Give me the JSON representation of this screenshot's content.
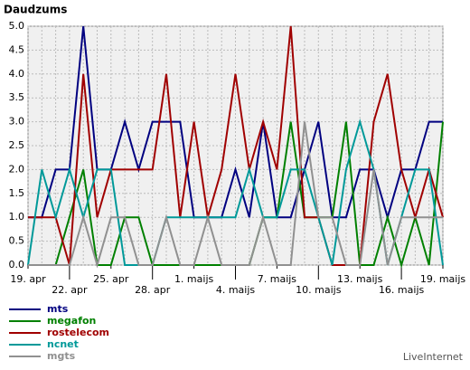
{
  "chart_data": {
    "type": "line",
    "title": "Daudzums",
    "footer": "LiveInternet",
    "categories": [
      "19. apr",
      null,
      null,
      "22. apr",
      null,
      null,
      "25. apr",
      null,
      null,
      "28. apr",
      null,
      null,
      "1. maijs",
      null,
      null,
      "4. maijs",
      null,
      null,
      "7. maijs",
      null,
      null,
      "10. maijs",
      null,
      null,
      "13. maijs",
      null,
      null,
      "16. maijs",
      null,
      null,
      "19. maijs"
    ],
    "ylim": [
      0,
      5
    ],
    "yticks": [
      {
        "value": 0,
        "label": "0.0"
      },
      {
        "value": 0.5,
        "label": "0.5"
      },
      {
        "value": 1,
        "label": "1.0"
      },
      {
        "value": 1.5,
        "label": "1.5"
      },
      {
        "value": 2,
        "label": "2.0"
      },
      {
        "value": 2.5,
        "label": "2.5"
      },
      {
        "value": 3,
        "label": "3.0"
      },
      {
        "value": 3.5,
        "label": "3.5"
      },
      {
        "value": 4,
        "label": "4.0"
      },
      {
        "value": 4.5,
        "label": "4.5"
      },
      {
        "value": 5,
        "label": "5.0"
      }
    ],
    "grid": true,
    "series": [
      {
        "name": "mts",
        "color": "#000080",
        "values": [
          1,
          1,
          2,
          2,
          5,
          2,
          2,
          3,
          2,
          3,
          3,
          3,
          1,
          1,
          1,
          2,
          1,
          3,
          1,
          1,
          2,
          3,
          1,
          1,
          2,
          2,
          1,
          2,
          2,
          3,
          3
        ]
      },
      {
        "name": "megafon",
        "color": "#008000",
        "values": [
          0,
          0,
          0,
          1,
          2,
          0,
          0,
          1,
          1,
          0,
          0,
          0,
          0,
          0,
          0,
          0,
          0,
          1,
          1,
          3,
          1,
          1,
          1,
          3,
          0,
          0,
          1,
          0,
          1,
          0,
          3
        ]
      },
      {
        "name": "rostelecom",
        "color": "#a00000",
        "values": [
          1,
          1,
          1,
          0,
          4,
          1,
          2,
          2,
          2,
          2,
          4,
          1,
          3,
          1,
          2,
          4,
          2,
          3,
          2,
          5,
          1,
          1,
          0,
          0,
          0,
          3,
          4,
          2,
          1,
          2,
          1
        ]
      },
      {
        "name": "ncnet",
        "color": "#009999",
        "values": [
          0,
          2,
          1,
          2,
          1,
          2,
          2,
          0,
          0,
          0,
          1,
          1,
          1,
          1,
          1,
          1,
          2,
          1,
          1,
          2,
          2,
          1,
          0,
          2,
          3,
          2,
          0,
          1,
          2,
          2,
          0
        ]
      },
      {
        "name": "mgts",
        "color": "#909090",
        "values": [
          0,
          0,
          0,
          0,
          1,
          0,
          1,
          1,
          0,
          0,
          1,
          0,
          0,
          1,
          0,
          0,
          0,
          1,
          0,
          0,
          3,
          1,
          1,
          0,
          0,
          2,
          0,
          1,
          1,
          1,
          1
        ]
      }
    ]
  }
}
